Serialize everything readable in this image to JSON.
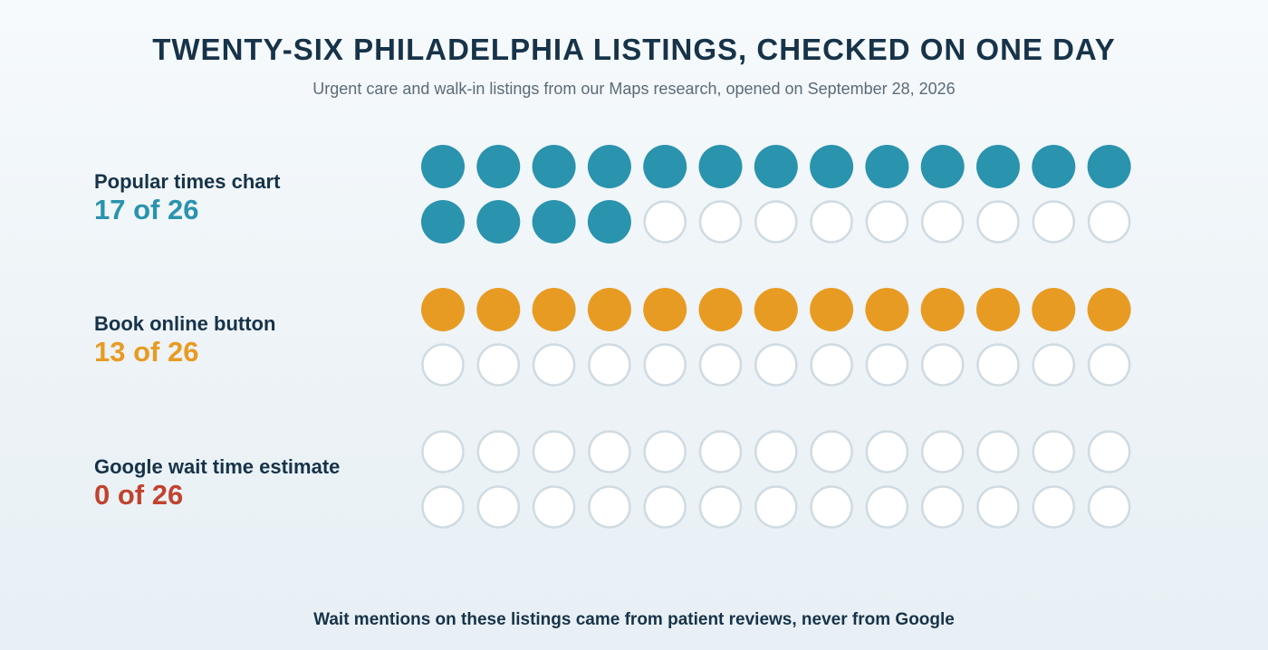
{
  "title": "TWENTY-SIX PHILADELPHIA LISTINGS, CHECKED ON ONE DAY",
  "subtitle": "Urgent care and walk-in listings from our Maps research, opened on September 28, 2026",
  "footer": "Wait mentions on these listings came from patient reviews, never from Google",
  "colors": {
    "popular": "#2a93ad",
    "book": "#e89b22",
    "wait": "#c0432f",
    "empty_fill": "#ffffff",
    "empty_stroke": "#cfdbe2",
    "text": "#163349"
  },
  "rows": [
    {
      "label": "Popular times chart",
      "count_text": "17 of 26"
    },
    {
      "label": "Book online button",
      "count_text": "13 of 26"
    },
    {
      "label": "Google wait time estimate",
      "count_text": "0 of 26"
    }
  ],
  "chart_data": {
    "type": "waffle",
    "title": "TWENTY-SIX PHILADELPHIA LISTINGS, CHECKED ON ONE DAY",
    "total": 26,
    "categories": [
      "Popular times chart",
      "Book online button",
      "Google wait time estimate"
    ],
    "values": [
      17,
      13,
      0
    ]
  }
}
